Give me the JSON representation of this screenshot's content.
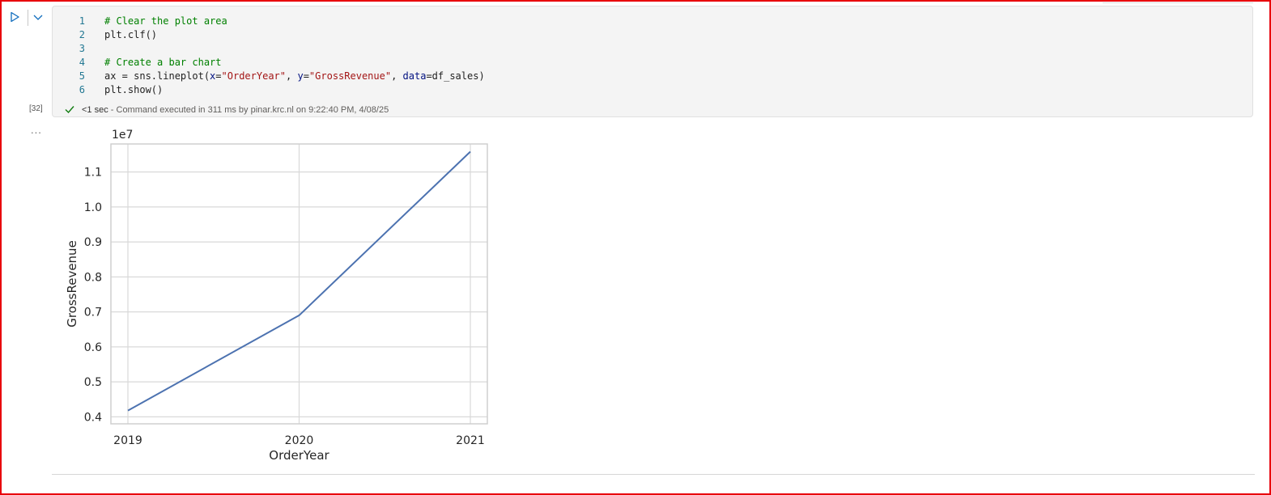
{
  "cell": {
    "execution_count": "[32]",
    "output_menu": "...",
    "lines": [
      {
        "n": "1",
        "tokens": [
          {
            "t": "# Clear the plot area",
            "c": "comment"
          }
        ]
      },
      {
        "n": "2",
        "tokens": [
          {
            "t": "plt.clf()",
            "c": ""
          }
        ]
      },
      {
        "n": "3",
        "tokens": []
      },
      {
        "n": "4",
        "tokens": [
          {
            "t": "# Create a bar chart",
            "c": "comment"
          }
        ]
      },
      {
        "n": "5",
        "tokens": [
          {
            "t": "ax = sns.lineplot(",
            "c": ""
          },
          {
            "t": "x",
            "c": "kw"
          },
          {
            "t": "=",
            "c": ""
          },
          {
            "t": "\"OrderYear\"",
            "c": "str"
          },
          {
            "t": ", ",
            "c": ""
          },
          {
            "t": "y",
            "c": "kw"
          },
          {
            "t": "=",
            "c": ""
          },
          {
            "t": "\"GrossRevenue\"",
            "c": "str"
          },
          {
            "t": ", ",
            "c": ""
          },
          {
            "t": "data",
            "c": "kw"
          },
          {
            "t": "=df_sales)",
            "c": ""
          }
        ]
      },
      {
        "n": "6",
        "tokens": [
          {
            "t": "plt.show()",
            "c": ""
          }
        ]
      }
    ],
    "status_time": "<1 sec",
    "status_text": " - Command executed in 311 ms by pinar.krc.nl on 9:22:40 PM, 4/08/25"
  },
  "colors": {
    "frame_border": "#e8000b",
    "run_icon": "#0f6cbd",
    "check": "#107c10",
    "line": "#4c72b0",
    "grid": "#d9d9d9"
  },
  "icons": {
    "run": "play-triangle-icon",
    "expand": "chevron-down-icon",
    "status": "checkmark-icon"
  },
  "chart_data": {
    "type": "line",
    "x": [
      "2019",
      "2020",
      "2021"
    ],
    "series": [
      {
        "values": [
          4180000,
          6900000,
          11580000
        ]
      }
    ],
    "xlabel": "OrderYear",
    "ylabel": "GrossRevenue",
    "offset_label": "1e7",
    "ylim": [
      0.38,
      1.18
    ],
    "yticks": [
      0.4,
      0.5,
      0.6,
      0.7,
      0.8,
      0.9,
      1.0,
      1.1
    ],
    "ytick_labels": [
      "0.4",
      "0.5",
      "0.6",
      "0.7",
      "0.8",
      "0.9",
      "1.0",
      "1.1"
    ],
    "grid": true
  }
}
